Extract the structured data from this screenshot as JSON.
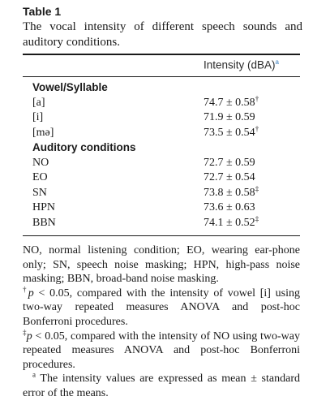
{
  "table": {
    "label": "Table 1",
    "caption": "The vocal intensity of different speech sounds and auditory conditions.",
    "column_header": "Intensity (dBA)",
    "column_header_mark": "a",
    "sections": [
      {
        "title": "Vowel/Syllable",
        "rows": [
          {
            "label": "[a]",
            "value": "74.7 ± 0.58",
            "mark": "†"
          },
          {
            "label": "[i]",
            "value": "71.9 ± 0.59",
            "mark": ""
          },
          {
            "label": "[mə]",
            "value": "73.5 ± 0.54",
            "mark": "†"
          }
        ]
      },
      {
        "title": "Auditory conditions",
        "rows": [
          {
            "label": "NO",
            "value": "72.7 ± 0.59",
            "mark": ""
          },
          {
            "label": "EO",
            "value": "72.7 ± 0.54",
            "mark": ""
          },
          {
            "label": "SN",
            "value": "73.8 ± 0.58",
            "mark": "‡"
          },
          {
            "label": "HPN",
            "value": "73.6 ± 0.63",
            "mark": ""
          },
          {
            "label": "BBN",
            "value": "74.1 ± 0.52",
            "mark": "‡"
          }
        ]
      }
    ]
  },
  "notes": {
    "abbreviations": "NO, normal listening condition; EO, wearing ear-phone only; SN, speech noise masking; HPN, high-pass noise masking; BBN, broad-band noise masking.",
    "dagger_mark": "†",
    "dagger_p": "p",
    "dagger_text": " < 0.05, compared with the intensity of vowel [i] using two-way repeated measures ANOVA and post-hoc Bonferroni procedures.",
    "ddagger_mark": "‡",
    "ddagger_p": "p",
    "ddagger_text": " < 0.05, compared with the intensity of NO using two-way repeated measures ANOVA and post-hoc Bonferroni procedures.",
    "a_mark": "a",
    "a_text": " The intensity values are expressed as mean ± standard error of the means."
  },
  "colors": {
    "text": "#1a1a1a",
    "header_mark": "#3a7fbf"
  }
}
